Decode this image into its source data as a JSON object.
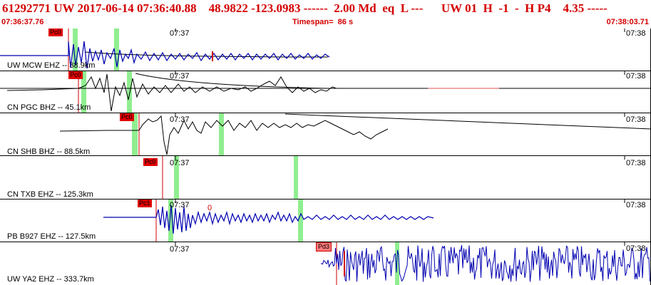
{
  "header": {
    "event_line": "61292771 UW 2017-06-14 07:36:40.88    48.9822 -123.0983 ------  2.00 Md  eq  L ---      UW 01  H  -1  -  H P4    4.35 -----",
    "start_time": "07:36:37.76",
    "timespan_label": "Timespan=  86 s",
    "end_time": "07:38:03.71"
  },
  "colors": {
    "header_text": "#d40000",
    "waveform": "#0000b0",
    "window_highlight": "#90ee90",
    "pick_flag": "#e00000",
    "decay_line": "#000000"
  },
  "panels": [
    {
      "station": "UW MCW EHZ -- 38.9km",
      "tick_mid": "07:37",
      "tick_right": "07:38",
      "pick_label": "Pc0",
      "amp_mark": ""
    },
    {
      "station": "CN PGC BHZ -- 45.1km",
      "tick_mid": "07:37",
      "tick_right": "07:38",
      "pick_label": "Pc0",
      "amp_mark": ""
    },
    {
      "station": "CN SHB BHZ -- 88.5km",
      "tick_mid": "07:37",
      "tick_right": "07:38",
      "pick_label": "Pc0",
      "amp_mark": ""
    },
    {
      "station": "CN TXB EHZ -- 125.3km",
      "tick_mid": "07:37",
      "tick_right": "07:38",
      "pick_label": "Pc0",
      "amp_mark": ""
    },
    {
      "station": "PB B927 EHZ -- 127.5km",
      "tick_mid": "07:37",
      "tick_right": "07:38",
      "pick_label": "Pc1",
      "amp_mark": "0"
    },
    {
      "station": "UW YA2 EHZ -- 333.7km",
      "tick_mid": "07:37",
      "tick_right": "07:38",
      "pick_label": "Pd3",
      "amp_mark": ""
    }
  ]
}
